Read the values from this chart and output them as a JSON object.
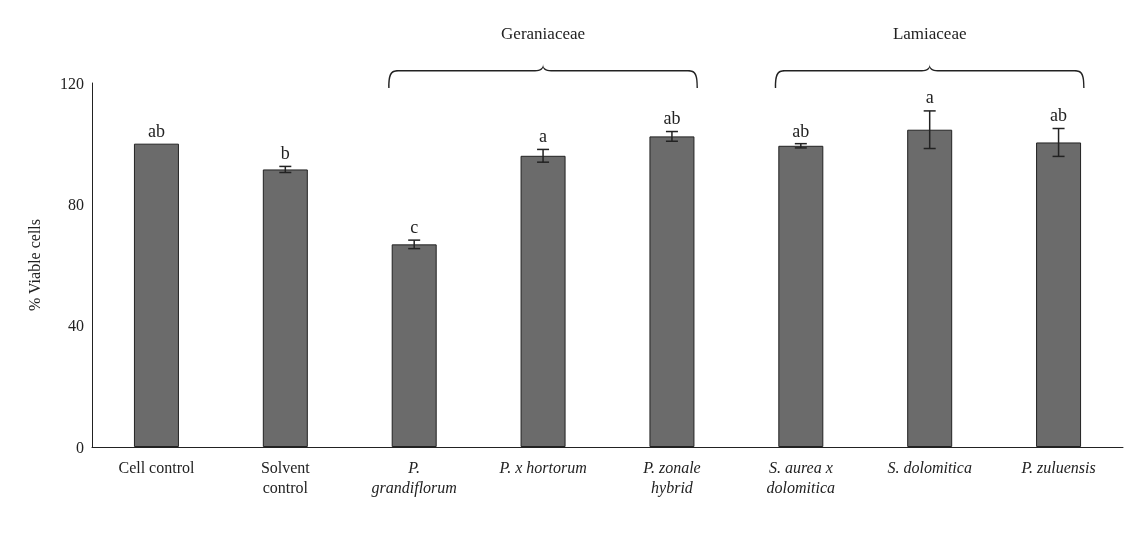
{
  "chart_data": {
    "type": "bar",
    "ylabel": "% Viable cells",
    "categories": [
      "Cell control",
      "Solvent control",
      "P. grandiflorum",
      "P. x hortorum",
      "P. zonale hybrid",
      "S. aurea x dolomitica",
      "S. dolomitica",
      "P. zuluensis"
    ],
    "values": [
      100,
      91.5,
      66.8,
      96,
      102.4,
      99.3,
      104.6,
      100.4
    ],
    "errors": [
      null,
      1,
      1.4,
      2.1,
      1.6,
      0.7,
      6.2,
      4.6
    ],
    "value_labels": [
      "ab",
      "b",
      "c",
      "a",
      "ab",
      "ab",
      "a",
      "ab"
    ],
    "color": "#6b6b6b",
    "ylim": [
      0,
      120
    ],
    "yticks": [
      0,
      40,
      80,
      120
    ],
    "grid": false,
    "annotations": [
      "Geraniaceae",
      "Lamiaceae"
    ]
  }
}
